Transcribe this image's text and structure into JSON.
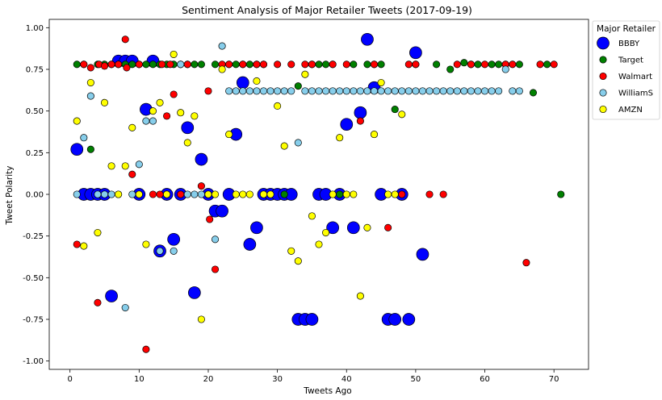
{
  "chart_data": {
    "type": "scatter",
    "title": "Sentiment Analysis of Major Retailer Tweets (2017-09-19)",
    "xlabel": "Tweets Ago",
    "ylabel": "Tweet Polarity",
    "xlim": [
      -3,
      75
    ],
    "ylim": [
      -1.05,
      1.05
    ],
    "xticks": [
      0,
      10,
      20,
      30,
      40,
      50,
      60,
      70
    ],
    "yticks": [
      -1.0,
      -0.75,
      -0.5,
      -0.25,
      0.0,
      0.25,
      0.5,
      0.75,
      1.0
    ],
    "ytick_labels": [
      "-1.00",
      "-0.75",
      "-0.50",
      "-0.25",
      "0.00",
      "0.25",
      "0.50",
      "0.75",
      "1.00"
    ],
    "grid": false,
    "legend": {
      "title": "Major Retailer",
      "placement": "upper-right-outside"
    },
    "series": [
      {
        "name": "BBBY",
        "color": "#0000ff",
        "marker_size": "large",
        "points": [
          [
            1,
            0.27
          ],
          [
            2,
            0
          ],
          [
            3,
            0
          ],
          [
            4,
            0
          ],
          [
            5,
            0
          ],
          [
            6,
            -0.61
          ],
          [
            7,
            0.8
          ],
          [
            8,
            0.8
          ],
          [
            9,
            0.8
          ],
          [
            10,
            0
          ],
          [
            11,
            0.51
          ],
          [
            12,
            0.8
          ],
          [
            13,
            -0.34
          ],
          [
            14,
            0
          ],
          [
            15,
            -0.27
          ],
          [
            16,
            0
          ],
          [
            17,
            0.4
          ],
          [
            18,
            -0.59
          ],
          [
            19,
            0.21
          ],
          [
            20,
            0
          ],
          [
            21,
            -0.1
          ],
          [
            22,
            -0.1
          ],
          [
            23,
            0
          ],
          [
            24,
            0.36
          ],
          [
            25,
            0.67
          ],
          [
            26,
            -0.3
          ],
          [
            27,
            -0.2
          ],
          [
            28,
            0
          ],
          [
            29,
            0
          ],
          [
            30,
            0
          ],
          [
            31,
            0
          ],
          [
            32,
            0
          ],
          [
            33,
            -0.75
          ],
          [
            34,
            -0.75
          ],
          [
            35,
            -0.75
          ],
          [
            36,
            0
          ],
          [
            37,
            0
          ],
          [
            38,
            -0.2
          ],
          [
            39,
            0
          ],
          [
            40,
            0.42
          ],
          [
            41,
            -0.2
          ],
          [
            42,
            0.49
          ],
          [
            43,
            0.93
          ],
          [
            44,
            0.64
          ],
          [
            45,
            0
          ],
          [
            46,
            -0.75
          ],
          [
            47,
            -0.75
          ],
          [
            48,
            0
          ],
          [
            49,
            -0.75
          ],
          [
            50,
            0.85
          ],
          [
            51,
            -0.36
          ]
        ]
      },
      {
        "name": "Target",
        "color": "#008000",
        "marker_size": "small",
        "points": [
          [
            1,
            0.78
          ],
          [
            2,
            0.78
          ],
          [
            3,
            0.27
          ],
          [
            4,
            0.78
          ],
          [
            5,
            0.78
          ],
          [
            6,
            0.78
          ],
          [
            7,
            0.78
          ],
          [
            8,
            0.78
          ],
          [
            9,
            0.78
          ],
          [
            10,
            0.78
          ],
          [
            11,
            0.78
          ],
          [
            12,
            0.78
          ],
          [
            13,
            0.78
          ],
          [
            14,
            0.78
          ],
          [
            15,
            0.78
          ],
          [
            16,
            0.78
          ],
          [
            17,
            0.78
          ],
          [
            18,
            0.78
          ],
          [
            19,
            0.78
          ],
          [
            21,
            0.78
          ],
          [
            23,
            0.78
          ],
          [
            24,
            0.78
          ],
          [
            25,
            0.78
          ],
          [
            26,
            0.78
          ],
          [
            27,
            0.78
          ],
          [
            28,
            0.78
          ],
          [
            31,
            0
          ],
          [
            33,
            0.65
          ],
          [
            35,
            0.78
          ],
          [
            36,
            0.78
          ],
          [
            37,
            0.78
          ],
          [
            38,
            0.78
          ],
          [
            39,
            0
          ],
          [
            41,
            0.78
          ],
          [
            43,
            0.78
          ],
          [
            44,
            0.78
          ],
          [
            45,
            0.78
          ],
          [
            47,
            0.51
          ],
          [
            50,
            0.78
          ],
          [
            53,
            0.78
          ],
          [
            55,
            0.75
          ],
          [
            57,
            0.79
          ],
          [
            58,
            0.78
          ],
          [
            59,
            0.78
          ],
          [
            61,
            0.78
          ],
          [
            62,
            0.78
          ],
          [
            63,
            0.78
          ],
          [
            65,
            0.78
          ],
          [
            67,
            0.61
          ],
          [
            69,
            0.78
          ],
          [
            71,
            0
          ]
        ]
      },
      {
        "name": "Walmart",
        "color": "#ff0000",
        "marker_size": "small",
        "points": [
          [
            1,
            -0.3
          ],
          [
            2,
            0.78
          ],
          [
            3,
            0.76
          ],
          [
            4,
            -0.65
          ],
          [
            4.2,
            0.78
          ],
          [
            5,
            0.77
          ],
          [
            6,
            0.78
          ],
          [
            7,
            0.78
          ],
          [
            8,
            0.93
          ],
          [
            8.2,
            0.76
          ],
          [
            9,
            0.12
          ],
          [
            10,
            0.78
          ],
          [
            11,
            -0.93
          ],
          [
            12,
            0
          ],
          [
            13,
            0
          ],
          [
            13.3,
            0.78
          ],
          [
            14,
            0.47
          ],
          [
            14.5,
            0.78
          ],
          [
            15,
            0.6
          ],
          [
            16,
            0
          ],
          [
            17,
            0.78
          ],
          [
            19,
            0.05
          ],
          [
            20,
            0.62
          ],
          [
            20.2,
            -0.15
          ],
          [
            21,
            -0.45
          ],
          [
            22,
            0.78
          ],
          [
            23,
            0.78
          ],
          [
            25,
            0.78
          ],
          [
            27,
            0.78
          ],
          [
            28,
            0.78
          ],
          [
            30,
            0.78
          ],
          [
            32,
            0.78
          ],
          [
            34,
            0.78
          ],
          [
            35,
            0.78
          ],
          [
            38,
            0.78
          ],
          [
            40,
            0.78
          ],
          [
            42,
            0.44
          ],
          [
            44,
            0.78
          ],
          [
            46,
            -0.2
          ],
          [
            48,
            0
          ],
          [
            49,
            0.78
          ],
          [
            50,
            0.78
          ],
          [
            52,
            0
          ],
          [
            54,
            0
          ],
          [
            56,
            0.78
          ],
          [
            58,
            0.78
          ],
          [
            60,
            0.78
          ],
          [
            63,
            0.78
          ],
          [
            64,
            0.78
          ],
          [
            66,
            -0.41
          ],
          [
            68,
            0.78
          ],
          [
            70,
            0.78
          ]
        ]
      },
      {
        "name": "WilliamS",
        "color": "#87ceeb",
        "marker_size": "small",
        "points": [
          [
            1,
            0
          ],
          [
            2,
            0.34
          ],
          [
            3,
            0.59
          ],
          [
            4,
            0
          ],
          [
            5,
            0
          ],
          [
            6,
            0
          ],
          [
            7,
            0
          ],
          [
            8,
            -0.68
          ],
          [
            9,
            0
          ],
          [
            10,
            0.18
          ],
          [
            11,
            0.44
          ],
          [
            12,
            0.44
          ],
          [
            13,
            -0.34
          ],
          [
            14,
            0
          ],
          [
            15,
            -0.34
          ],
          [
            16,
            0.78
          ],
          [
            17,
            0
          ],
          [
            18,
            0
          ],
          [
            19,
            0
          ],
          [
            20,
            0
          ],
          [
            21,
            -0.27
          ],
          [
            22,
            0.89
          ],
          [
            23,
            0.62
          ],
          [
            24,
            0.62
          ],
          [
            25,
            0.62
          ],
          [
            26,
            0.62
          ],
          [
            27,
            0.62
          ],
          [
            28,
            0.62
          ],
          [
            29,
            0.62
          ],
          [
            30,
            0.62
          ],
          [
            31,
            0.62
          ],
          [
            32,
            0.62
          ],
          [
            33,
            0.31
          ],
          [
            34,
            0.62
          ],
          [
            35,
            0.62
          ],
          [
            36,
            0.62
          ],
          [
            37,
            0.62
          ],
          [
            38,
            0.62
          ],
          [
            39,
            0.62
          ],
          [
            40,
            0.62
          ],
          [
            41,
            0.62
          ],
          [
            42,
            0.62
          ],
          [
            43,
            0.62
          ],
          [
            44,
            0.62
          ],
          [
            45,
            0.62
          ],
          [
            46,
            0.62
          ],
          [
            47,
            0.62
          ],
          [
            48,
            0.62
          ],
          [
            49,
            0.62
          ],
          [
            50,
            0.62
          ],
          [
            51,
            0.62
          ],
          [
            52,
            0.62
          ],
          [
            53,
            0.62
          ],
          [
            54,
            0.62
          ],
          [
            55,
            0.62
          ],
          [
            56,
            0.62
          ],
          [
            57,
            0.62
          ],
          [
            58,
            0.62
          ],
          [
            59,
            0.62
          ],
          [
            60,
            0.62
          ],
          [
            61,
            0.62
          ],
          [
            62,
            0.62
          ],
          [
            63,
            0.75
          ],
          [
            64,
            0.62
          ],
          [
            65,
            0.62
          ]
        ]
      },
      {
        "name": "AMZN",
        "color": "#ffff00",
        "marker_size": "small",
        "points": [
          [
            1,
            0.44
          ],
          [
            2,
            -0.31
          ],
          [
            3,
            0.67
          ],
          [
            4,
            -0.23
          ],
          [
            5,
            0.55
          ],
          [
            6,
            0.17
          ],
          [
            7,
            0
          ],
          [
            8,
            0.17
          ],
          [
            9,
            0.4
          ],
          [
            10,
            0
          ],
          [
            11,
            -0.3
          ],
          [
            12,
            0.5
          ],
          [
            13,
            0.55
          ],
          [
            14,
            0
          ],
          [
            15,
            0.84
          ],
          [
            16,
            0.49
          ],
          [
            17,
            0.31
          ],
          [
            18,
            0.47
          ],
          [
            19,
            -0.75
          ],
          [
            20,
            0
          ],
          [
            21,
            0
          ],
          [
            22,
            0.75
          ],
          [
            23,
            0.36
          ],
          [
            24,
            0
          ],
          [
            25,
            0
          ],
          [
            26,
            0
          ],
          [
            27,
            0.68
          ],
          [
            28,
            0
          ],
          [
            29,
            0
          ],
          [
            30,
            0.53
          ],
          [
            31,
            0.29
          ],
          [
            32,
            -0.34
          ],
          [
            33,
            -0.4
          ],
          [
            34,
            0.72
          ],
          [
            35,
            -0.13
          ],
          [
            36,
            -0.3
          ],
          [
            37,
            -0.23
          ],
          [
            38,
            0
          ],
          [
            39,
            0.34
          ],
          [
            40,
            0
          ],
          [
            41,
            0
          ],
          [
            42,
            -0.61
          ],
          [
            43,
            -0.2
          ],
          [
            44,
            0.36
          ],
          [
            45,
            0.67
          ],
          [
            46,
            0
          ],
          [
            47,
            0
          ],
          [
            48,
            0.48
          ]
        ]
      }
    ]
  }
}
